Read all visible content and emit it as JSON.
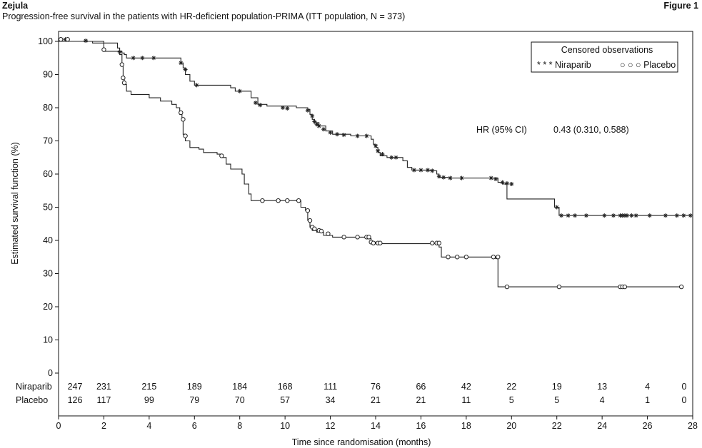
{
  "header": {
    "brand": "Zejula",
    "figure_label": "Figure 1",
    "subtitle": "Progression-free survival in the patients with HR-deficient population-PRIMA (ITT population, N = 373)"
  },
  "chart_data": {
    "type": "line",
    "subtype": "kaplan-meier",
    "title": "",
    "xlabel": "Time since randomisation (months)",
    "ylabel": "Estimated survival function (%)",
    "xlim": [
      0,
      28
    ],
    "ylim": [
      0,
      100
    ],
    "x_ticks": [
      0,
      2,
      4,
      6,
      8,
      10,
      12,
      14,
      16,
      18,
      20,
      22,
      24,
      26,
      28
    ],
    "y_ticks": [
      0,
      10,
      20,
      30,
      40,
      50,
      60,
      70,
      80,
      90,
      100
    ],
    "grid": false,
    "legend": {
      "title": "Censored observations",
      "placement": "top-right",
      "entries": [
        {
          "series": "Niraparib",
          "marker": "*",
          "label": "* * * Niraparib"
        },
        {
          "series": "Placebo",
          "marker": "o",
          "label": "○ ○ ○ Placebo"
        }
      ]
    },
    "annotation": {
      "label": "HR (95% CI)",
      "value": "0.43 (0.310, 0.588)"
    },
    "series": [
      {
        "name": "Niraparib",
        "marker": "*",
        "steps": [
          [
            0,
            100
          ],
          [
            1.3,
            100
          ],
          [
            1.5,
            99.5
          ],
          [
            2.6,
            98
          ],
          [
            2.7,
            97
          ],
          [
            2.8,
            96.5
          ],
          [
            2.9,
            96
          ],
          [
            3.0,
            95
          ],
          [
            5.3,
            95
          ],
          [
            5.4,
            93.5
          ],
          [
            5.5,
            92
          ],
          [
            5.6,
            90
          ],
          [
            5.8,
            88
          ],
          [
            6.0,
            86.8
          ],
          [
            7.6,
            86
          ],
          [
            7.8,
            85
          ],
          [
            8.5,
            83
          ],
          [
            8.8,
            81
          ],
          [
            9.2,
            80.5
          ],
          [
            10.5,
            80
          ],
          [
            11.0,
            79.5
          ],
          [
            11.1,
            78
          ],
          [
            11.2,
            76.5
          ],
          [
            11.3,
            75.5
          ],
          [
            11.5,
            74.5
          ],
          [
            11.8,
            73
          ],
          [
            12.1,
            72
          ],
          [
            12.9,
            71.5
          ],
          [
            13.7,
            71.5
          ],
          [
            13.8,
            70.5
          ],
          [
            13.9,
            69
          ],
          [
            14.0,
            68
          ],
          [
            14.1,
            66.5
          ],
          [
            14.2,
            65.5
          ],
          [
            14.5,
            65
          ],
          [
            15.2,
            64
          ],
          [
            15.4,
            62
          ],
          [
            15.6,
            61.2
          ],
          [
            16.4,
            61
          ],
          [
            16.7,
            60
          ],
          [
            16.8,
            59
          ],
          [
            17.2,
            58.8
          ],
          [
            19.3,
            58.8
          ],
          [
            19.4,
            57.5
          ],
          [
            19.6,
            57
          ],
          [
            19.8,
            52.5
          ],
          [
            21.8,
            52.5
          ],
          [
            21.9,
            50
          ],
          [
            22.1,
            47.5
          ],
          [
            27.9,
            47.5
          ]
        ],
        "censored": [
          [
            0.1,
            100.6
          ],
          [
            0.3,
            100.6
          ],
          [
            1.2,
            100.2
          ],
          [
            2.7,
            96.8
          ],
          [
            3.3,
            95
          ],
          [
            3.7,
            95
          ],
          [
            4.2,
            95
          ],
          [
            5.4,
            93.5
          ],
          [
            5.6,
            91.5
          ],
          [
            6.1,
            86.8
          ],
          [
            8.0,
            85
          ],
          [
            8.7,
            81.5
          ],
          [
            8.9,
            80.8
          ],
          [
            9.9,
            80
          ],
          [
            10.1,
            79.8
          ],
          [
            11.0,
            79.2
          ],
          [
            11.2,
            77.5
          ],
          [
            11.3,
            75.8
          ],
          [
            11.4,
            75
          ],
          [
            11.5,
            74.5
          ],
          [
            11.7,
            73.5
          ],
          [
            12.0,
            72.5
          ],
          [
            12.3,
            72
          ],
          [
            12.6,
            71.8
          ],
          [
            13.2,
            71.5
          ],
          [
            13.6,
            71.5
          ],
          [
            14.0,
            68.5
          ],
          [
            14.1,
            67
          ],
          [
            14.3,
            66
          ],
          [
            14.7,
            65
          ],
          [
            14.9,
            65
          ],
          [
            15.7,
            61.2
          ],
          [
            16.0,
            61.2
          ],
          [
            16.3,
            61.2
          ],
          [
            16.5,
            61
          ],
          [
            16.8,
            59.3
          ],
          [
            17.0,
            59
          ],
          [
            17.3,
            58.8
          ],
          [
            17.8,
            58.8
          ],
          [
            19.1,
            58.8
          ],
          [
            19.3,
            58.5
          ],
          [
            19.6,
            57.5
          ],
          [
            19.8,
            57.2
          ],
          [
            20.0,
            57
          ],
          [
            22.0,
            50
          ],
          [
            22.2,
            47.5
          ],
          [
            22.5,
            47.5
          ],
          [
            22.8,
            47.5
          ],
          [
            23.3,
            47.5
          ],
          [
            24.1,
            47.5
          ],
          [
            24.5,
            47.5
          ],
          [
            24.8,
            47.5
          ],
          [
            24.9,
            47.5
          ],
          [
            25.0,
            47.5
          ],
          [
            25.1,
            47.5
          ],
          [
            25.3,
            47.5
          ],
          [
            25.5,
            47.5
          ],
          [
            26.1,
            47.5
          ],
          [
            26.8,
            47.5
          ],
          [
            27.3,
            47.5
          ],
          [
            27.6,
            47.5
          ],
          [
            27.9,
            47.5
          ]
        ]
      },
      {
        "name": "Placebo",
        "marker": "o",
        "steps": [
          [
            0,
            100
          ],
          [
            1.8,
            100
          ],
          [
            2.0,
            97
          ],
          [
            2.7,
            96
          ],
          [
            2.8,
            93
          ],
          [
            2.85,
            89
          ],
          [
            2.9,
            87
          ],
          [
            3.0,
            85
          ],
          [
            3.2,
            84
          ],
          [
            4.0,
            83
          ],
          [
            4.5,
            82
          ],
          [
            5.0,
            81
          ],
          [
            5.2,
            80
          ],
          [
            5.35,
            78
          ],
          [
            5.45,
            76
          ],
          [
            5.5,
            72
          ],
          [
            5.6,
            70
          ],
          [
            5.8,
            68
          ],
          [
            6.2,
            67.5
          ],
          [
            6.4,
            66.5
          ],
          [
            7.0,
            66
          ],
          [
            7.2,
            65
          ],
          [
            7.4,
            63
          ],
          [
            7.6,
            61.5
          ],
          [
            8.1,
            60
          ],
          [
            8.2,
            57
          ],
          [
            8.4,
            54
          ],
          [
            8.5,
            52
          ],
          [
            10.5,
            52
          ],
          [
            10.7,
            50
          ],
          [
            10.9,
            49
          ],
          [
            11.0,
            46
          ],
          [
            11.1,
            44
          ],
          [
            11.2,
            43
          ],
          [
            11.4,
            42.5
          ],
          [
            11.7,
            41.5
          ],
          [
            12.1,
            41
          ],
          [
            13.6,
            40.5
          ],
          [
            13.8,
            39.5
          ],
          [
            14.0,
            39
          ],
          [
            16.7,
            39
          ],
          [
            16.8,
            38
          ],
          [
            16.9,
            35
          ],
          [
            19.2,
            35
          ],
          [
            19.3,
            34.5
          ],
          [
            19.4,
            26
          ],
          [
            27.6,
            26
          ]
        ],
        "censored": [
          [
            0.1,
            100.6
          ],
          [
            0.4,
            100.6
          ],
          [
            2.0,
            97.5
          ],
          [
            2.8,
            93
          ],
          [
            2.85,
            89
          ],
          [
            2.9,
            87.5
          ],
          [
            5.4,
            78.5
          ],
          [
            5.5,
            76.5
          ],
          [
            5.6,
            71.5
          ],
          [
            7.2,
            65.5
          ],
          [
            9.0,
            52
          ],
          [
            9.7,
            52
          ],
          [
            10.1,
            52
          ],
          [
            10.6,
            52
          ],
          [
            11.0,
            49
          ],
          [
            11.1,
            46
          ],
          [
            11.2,
            44
          ],
          [
            11.3,
            43.5
          ],
          [
            11.5,
            43
          ],
          [
            11.6,
            42.8
          ],
          [
            11.9,
            42
          ],
          [
            12.6,
            41
          ],
          [
            13.2,
            41
          ],
          [
            13.6,
            41
          ],
          [
            13.7,
            41
          ],
          [
            13.8,
            39.5
          ],
          [
            13.9,
            39.2
          ],
          [
            14.1,
            39.2
          ],
          [
            14.2,
            39.2
          ],
          [
            16.5,
            39.2
          ],
          [
            16.7,
            39.2
          ],
          [
            16.8,
            39.2
          ],
          [
            17.2,
            35
          ],
          [
            17.6,
            35
          ],
          [
            18.0,
            35
          ],
          [
            19.2,
            35
          ],
          [
            19.4,
            35
          ],
          [
            19.8,
            26
          ],
          [
            22.1,
            26
          ],
          [
            24.8,
            26
          ],
          [
            24.9,
            26
          ],
          [
            25.0,
            26
          ],
          [
            27.5,
            26
          ]
        ]
      }
    ],
    "risk_table": {
      "times": [
        0,
        2,
        4,
        6,
        8,
        10,
        12,
        14,
        16,
        18,
        20,
        22,
        24,
        26,
        28
      ],
      "rows": [
        {
          "label": "Niraparib",
          "values": [
            247,
            231,
            215,
            189,
            184,
            168,
            111,
            76,
            66,
            42,
            22,
            19,
            13,
            4,
            0
          ]
        },
        {
          "label": "Placebo",
          "values": [
            126,
            117,
            99,
            79,
            70,
            57,
            34,
            21,
            21,
            11,
            5,
            5,
            4,
            1,
            0
          ]
        }
      ]
    }
  }
}
